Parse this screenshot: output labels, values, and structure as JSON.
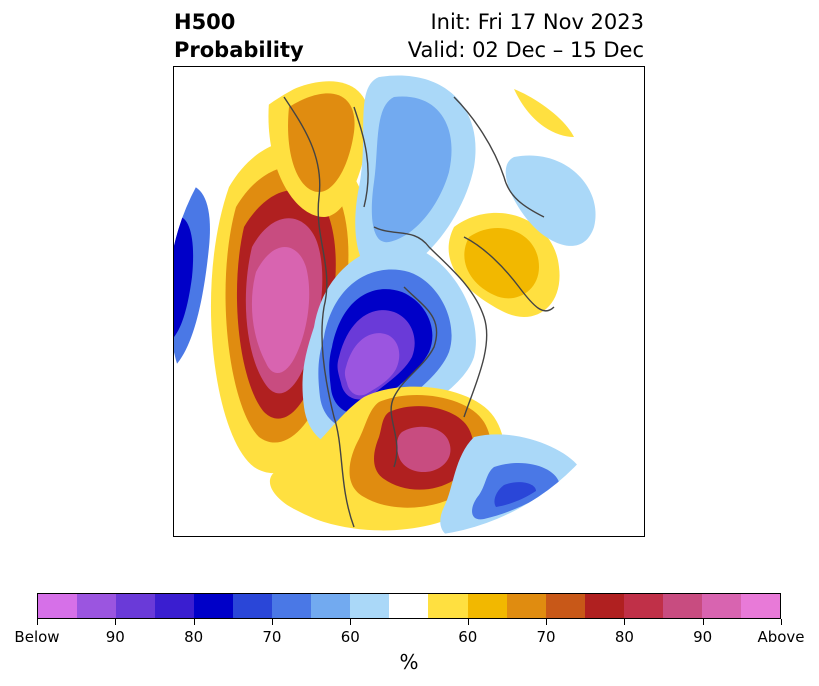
{
  "header": {
    "title": "H500\nProbability",
    "init": "Init: Fri 17 Nov 2023",
    "valid": "Valid: 02 Dec – 15 Dec"
  },
  "colorbar": {
    "colors": [
      "#d670e8",
      "#9b55e0",
      "#6a3ad8",
      "#3a1ed0",
      "#0000c8",
      "#2a46d8",
      "#4a78e6",
      "#72aaf0",
      "#aad8f8",
      "#ffffff",
      "#ffe040",
      "#f2b800",
      "#e08c10",
      "#c85818",
      "#b02020",
      "#c03048",
      "#c84c80",
      "#d864b0",
      "#e87ad8"
    ],
    "tick_labels": [
      "Below",
      "90",
      "80",
      "70",
      "60",
      "60",
      "70",
      "80",
      "90",
      "Above"
    ],
    "unit_label": "%"
  },
  "map": {
    "description_colors": {
      "below_strong": "#9b55e0",
      "below_mid": "#0000c8",
      "below_weak": "#aad8f8",
      "above_weak": "#ffe040",
      "above_mid": "#e08c10",
      "above_strong": "#d864b0"
    }
  }
}
